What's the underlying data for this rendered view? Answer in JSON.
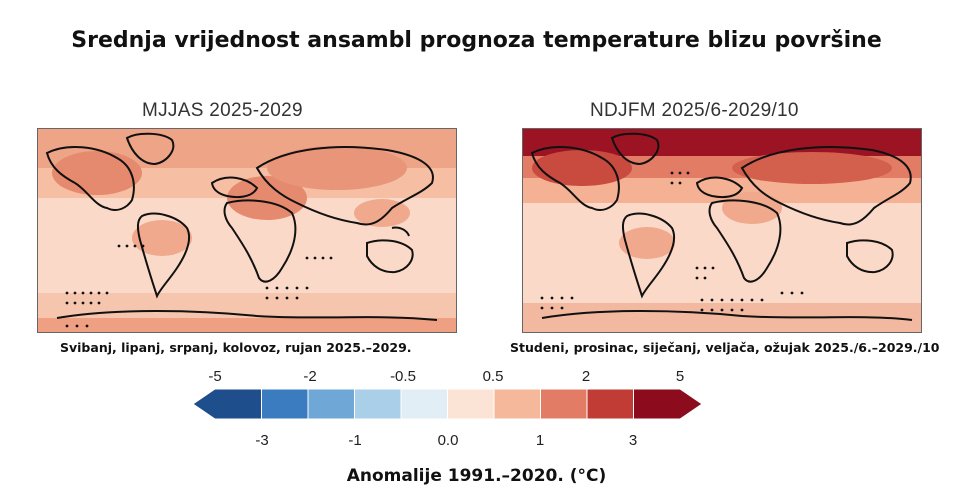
{
  "title": "Srednja vrijednost ansambl prognoza temperature blizu površine",
  "panels": [
    {
      "title": "MJJAS 2025-2029",
      "caption": "Svibanj, lipanj, srpanj, kolovoz, rujan 2025.–2029."
    },
    {
      "title": "NDJFM 2025/6-2029/10",
      "caption": "Studeni, prosinac, siječanj, veljača, ožujak 2025./6.–2029./10"
    }
  ],
  "colorbar": {
    "top_labels": [
      "-5",
      "-2",
      "-0.5",
      "0.5",
      "2",
      "5"
    ],
    "bottom_labels": [
      "-3",
      "-1",
      "0.0",
      "1",
      "3"
    ],
    "colors": [
      "#1f4e8c",
      "#3b7cc0",
      "#6fa8d6",
      "#a9d0e8",
      "#e2eef5",
      "#fbe3d6",
      "#f6b89b",
      "#e27c64",
      "#c23c36",
      "#8c0c1d"
    ]
  },
  "units_label": "Anomalije 1991.–2020. (°C)",
  "colors": {
    "land_warm": "#e79578",
    "ocean_mild": "#fbd9c8",
    "arctic_hot": "#8c0c1d"
  }
}
